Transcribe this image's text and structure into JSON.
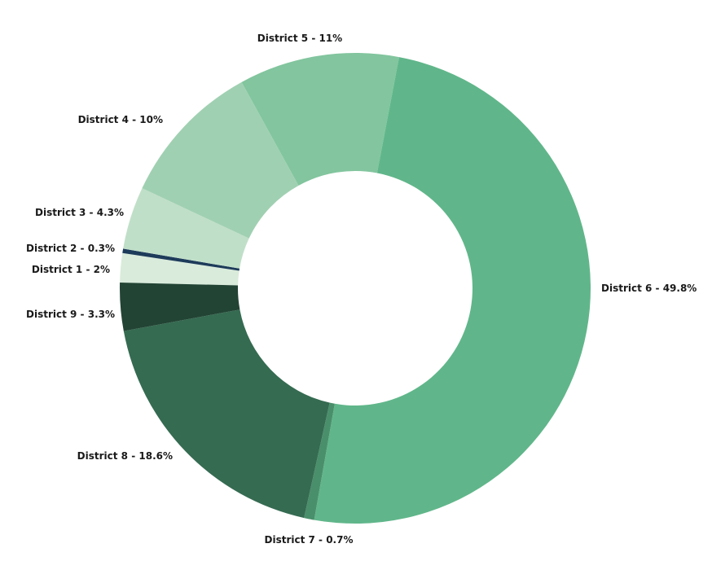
{
  "chart_data": {
    "type": "pie",
    "subtype": "donut",
    "title": "",
    "slices": [
      {
        "label": "District 1",
        "value": 2,
        "display": "District 1 - 2%",
        "color": "#d9ebdb"
      },
      {
        "label": "District 2",
        "value": 0.3,
        "display": "District 2 - 0.3%",
        "color": "#1d3b5a"
      },
      {
        "label": "District 3",
        "value": 4.3,
        "display": "District 3 - 4.3%",
        "color": "#c0dfc8"
      },
      {
        "label": "District 4",
        "value": 10,
        "display": "District 4 - 10%",
        "color": "#a0d0b2"
      },
      {
        "label": "District 5",
        "value": 11,
        "display": "District 5 - 11%",
        "color": "#82c59e"
      },
      {
        "label": "District 6",
        "value": 49.8,
        "display": "District 6 - 49.8%",
        "color": "#60b68a"
      },
      {
        "label": "District 7",
        "value": 0.7,
        "display": "District 7 - 0.7%",
        "color": "#4a8f6b"
      },
      {
        "label": "District 8",
        "value": 18.6,
        "display": "District 8 - 18.6%",
        "color": "#356b51"
      },
      {
        "label": "District 9",
        "value": 3.3,
        "display": "District 9 - 3.3%",
        "color": "#224434"
      }
    ],
    "unit": "%"
  }
}
